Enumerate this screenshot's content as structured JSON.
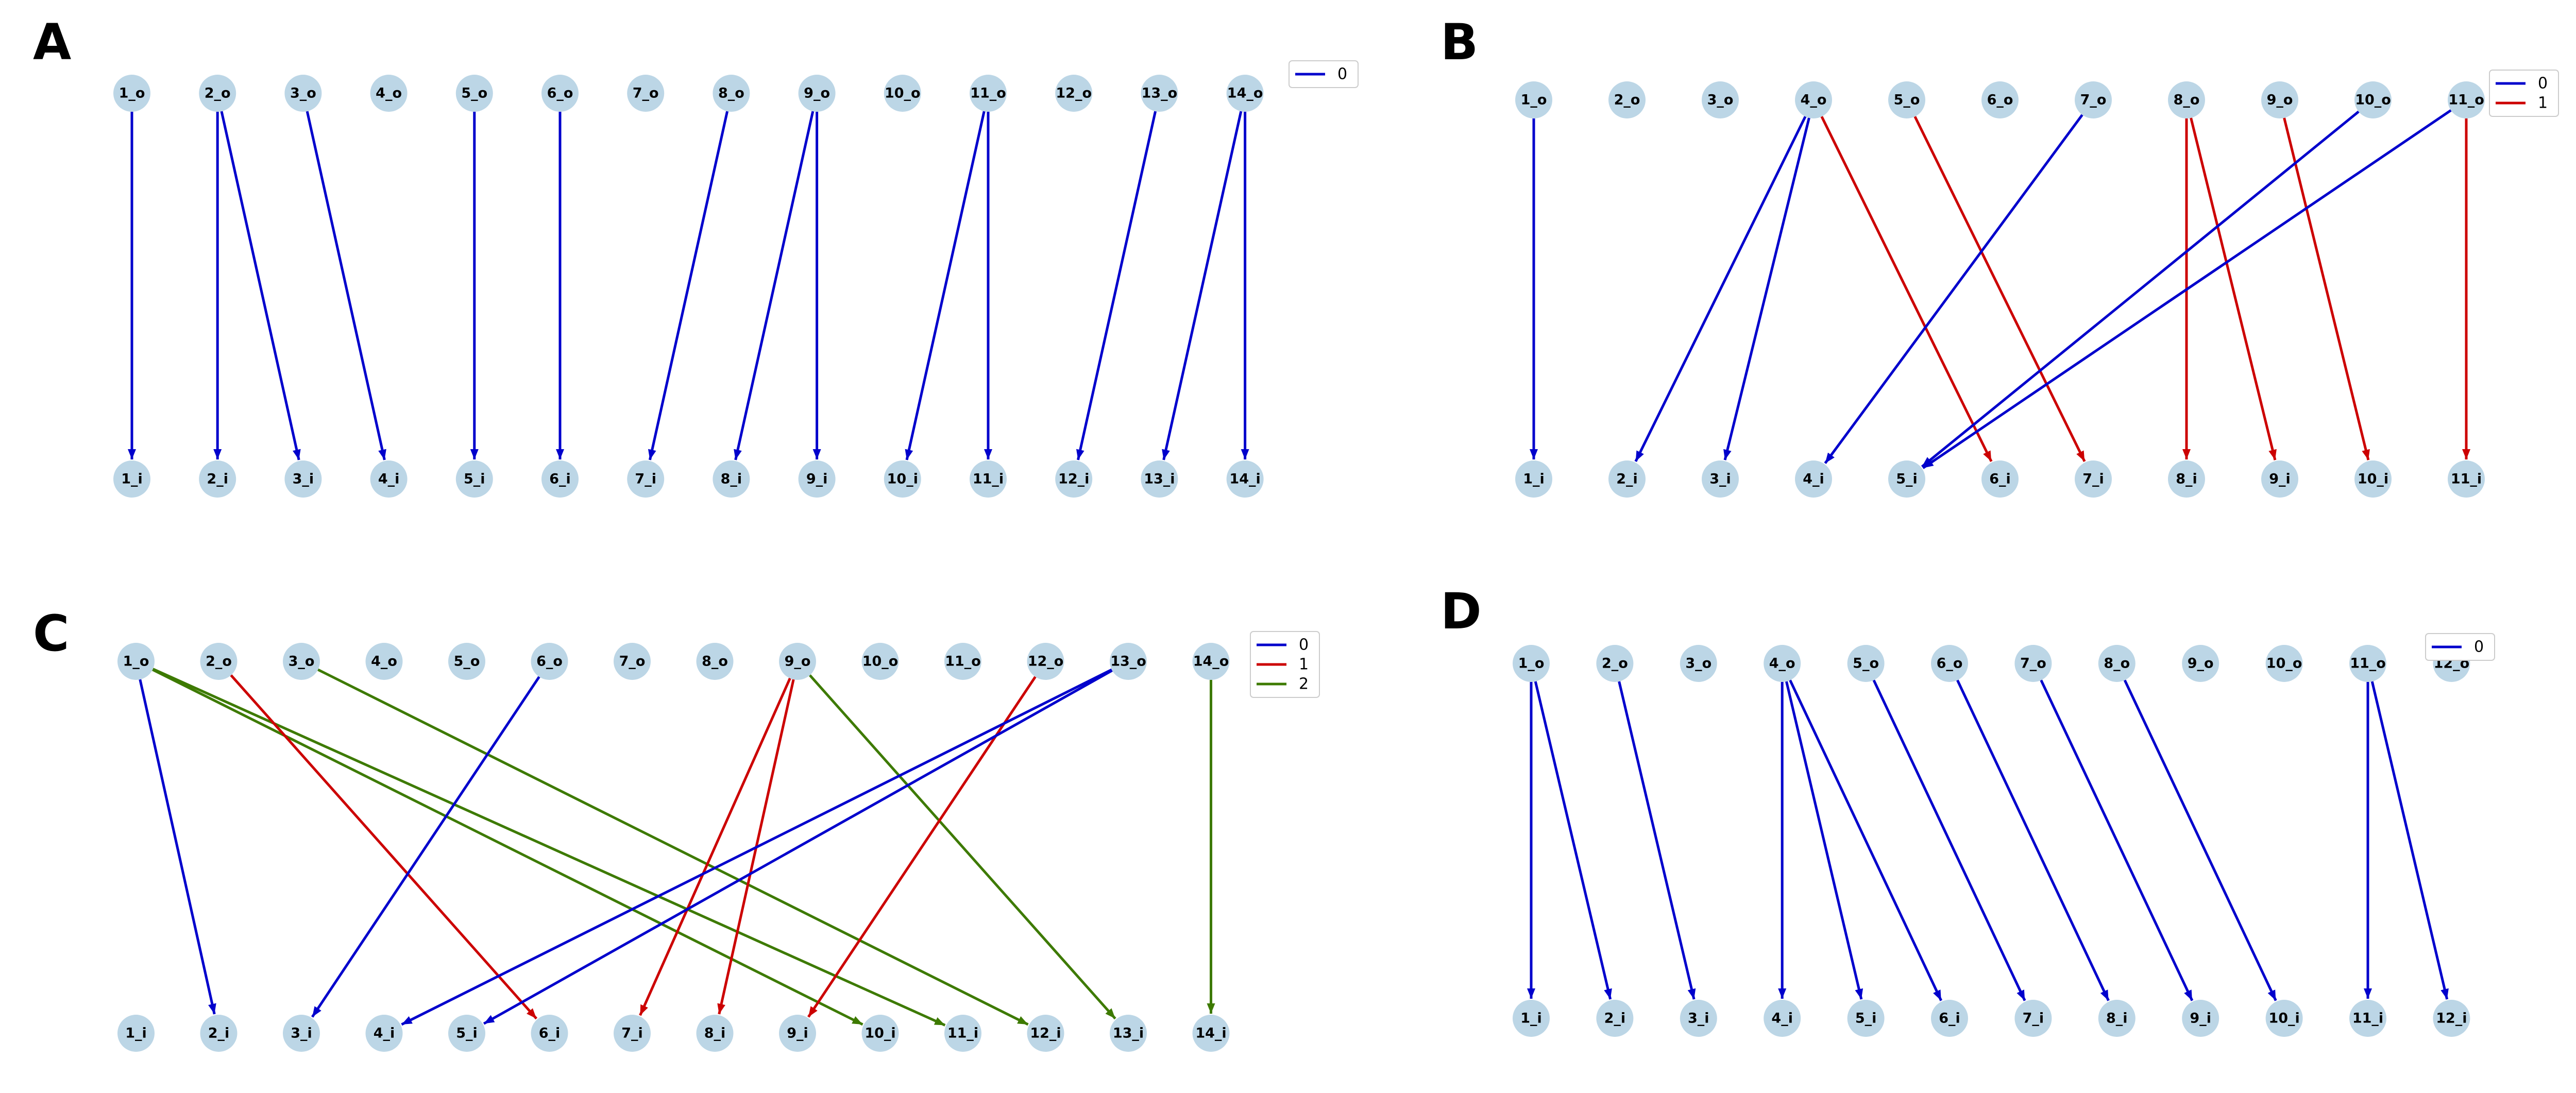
{
  "colors": {
    "0": "#0000cc",
    "1": "#cc0000",
    "2": "#3d7a00",
    "node": "#bcd6e6"
  },
  "panels": [
    {
      "label": "A",
      "top_nodes": [
        "1_o",
        "2_o",
        "3_o",
        "4_o",
        "5_o",
        "6_o",
        "7_o",
        "8_o",
        "9_o",
        "10_o",
        "11_o",
        "12_o",
        "13_o",
        "14_o"
      ],
      "bottom_nodes": [
        "1_i",
        "2_i",
        "3_i",
        "4_i",
        "5_i",
        "6_i",
        "7_i",
        "8_i",
        "9_i",
        "10_i",
        "11_i",
        "12_i",
        "13_i",
        "14_i"
      ],
      "legend": [
        "0"
      ],
      "edges": [
        [
          "1_o",
          "1_i",
          "0"
        ],
        [
          "2_o",
          "2_i",
          "0"
        ],
        [
          "2_o",
          "3_i",
          "0"
        ],
        [
          "3_o",
          "4_i",
          "0"
        ],
        [
          "5_o",
          "5_i",
          "0"
        ],
        [
          "6_o",
          "6_i",
          "0"
        ],
        [
          "8_o",
          "7_i",
          "0"
        ],
        [
          "9_o",
          "8_i",
          "0"
        ],
        [
          "9_o",
          "9_i",
          "0"
        ],
        [
          "11_o",
          "10_i",
          "0"
        ],
        [
          "11_o",
          "11_i",
          "0"
        ],
        [
          "13_o",
          "12_i",
          "0"
        ],
        [
          "14_o",
          "13_i",
          "0"
        ],
        [
          "14_o",
          "14_i",
          "0"
        ]
      ]
    },
    {
      "label": "B",
      "top_nodes": [
        "1_o",
        "2_o",
        "3_o",
        "4_o",
        "5_o",
        "6_o",
        "7_o",
        "8_o",
        "9_o",
        "10_o",
        "11_o"
      ],
      "bottom_nodes": [
        "1_i",
        "2_i",
        "3_i",
        "4_i",
        "5_i",
        "6_i",
        "7_i",
        "8_i",
        "9_i",
        "10_i",
        "11_i"
      ],
      "legend": [
        "0",
        "1"
      ],
      "edges": [
        [
          "1_o",
          "1_i",
          "0"
        ],
        [
          "4_o",
          "2_i",
          "0"
        ],
        [
          "4_o",
          "3_i",
          "0"
        ],
        [
          "4_o",
          "6_i",
          "1"
        ],
        [
          "5_o",
          "7_i",
          "1"
        ],
        [
          "7_o",
          "4_i",
          "0"
        ],
        [
          "8_o",
          "8_i",
          "1"
        ],
        [
          "8_o",
          "9_i",
          "1"
        ],
        [
          "9_o",
          "10_i",
          "1"
        ],
        [
          "10_o",
          "5_i",
          "0"
        ],
        [
          "11_o",
          "5_i",
          "0"
        ],
        [
          "11_o",
          "11_i",
          "1"
        ]
      ]
    },
    {
      "label": "C",
      "top_nodes": [
        "1_o",
        "2_o",
        "3_o",
        "4_o",
        "5_o",
        "6_o",
        "7_o",
        "8_o",
        "9_o",
        "10_o",
        "11_o",
        "12_o",
        "13_o",
        "14_o"
      ],
      "bottom_nodes": [
        "1_i",
        "2_i",
        "3_i",
        "4_i",
        "5_i",
        "6_i",
        "7_i",
        "8_i",
        "9_i",
        "10_i",
        "11_i",
        "12_i",
        "13_i",
        "14_i"
      ],
      "legend": [
        "0",
        "1",
        "2"
      ],
      "edges": [
        [
          "1_o",
          "2_i",
          "0"
        ],
        [
          "1_o",
          "10_i",
          "2"
        ],
        [
          "1_o",
          "11_i",
          "2"
        ],
        [
          "2_o",
          "6_i",
          "1"
        ],
        [
          "3_o",
          "12_i",
          "2"
        ],
        [
          "6_o",
          "3_i",
          "0"
        ],
        [
          "9_o",
          "7_i",
          "1"
        ],
        [
          "9_o",
          "8_i",
          "1"
        ],
        [
          "9_o",
          "13_i",
          "2"
        ],
        [
          "12_o",
          "9_i",
          "1"
        ],
        [
          "13_o",
          "4_i",
          "0"
        ],
        [
          "13_o",
          "5_i",
          "0"
        ],
        [
          "14_o",
          "14_i",
          "2"
        ]
      ]
    },
    {
      "label": "D",
      "top_nodes": [
        "1_o",
        "2_o",
        "3_o",
        "4_o",
        "5_o",
        "6_o",
        "7_o",
        "8_o",
        "9_o",
        "10_o",
        "11_o",
        "12_o"
      ],
      "bottom_nodes": [
        "1_i",
        "2_i",
        "3_i",
        "4_i",
        "5_i",
        "6_i",
        "7_i",
        "8_i",
        "9_i",
        "10_i",
        "11_i",
        "12_i"
      ],
      "legend": [
        "0"
      ],
      "edges": [
        [
          "1_o",
          "1_i",
          "0"
        ],
        [
          "1_o",
          "2_i",
          "0"
        ],
        [
          "2_o",
          "3_i",
          "0"
        ],
        [
          "4_o",
          "4_i",
          "0"
        ],
        [
          "4_o",
          "5_i",
          "0"
        ],
        [
          "4_o",
          "6_i",
          "0"
        ],
        [
          "5_o",
          "7_i",
          "0"
        ],
        [
          "6_o",
          "8_i",
          "0"
        ],
        [
          "7_o",
          "9_i",
          "0"
        ],
        [
          "8_o",
          "10_i",
          "0"
        ],
        [
          "11_o",
          "11_i",
          "0"
        ],
        [
          "11_o",
          "12_i",
          "0"
        ]
      ]
    }
  ]
}
